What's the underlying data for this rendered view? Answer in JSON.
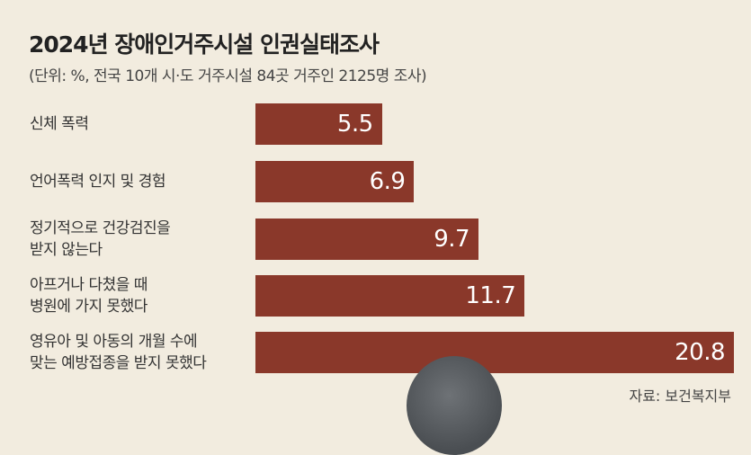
{
  "colors": {
    "background": "#f2ecdf",
    "bar": "#8a382a",
    "value_text": "#ffffff"
  },
  "chart_data": {
    "type": "bar",
    "orientation": "horizontal",
    "title": "2024년 장애인거주시설 인권실태조사",
    "subtitle": "(단위: %, 전국 10개 시·도 거주시설 84곳 거주인 2125명 조사)",
    "categories": [
      "신체 폭력",
      "언어폭력 인지 및 경험",
      "정기적으로 건강검진을\n받지 않는다",
      "아프거나 다쳤을 때\n병원에 가지 못했다",
      "영유아 및 아동의 개월 수에\n맞는 예방접종을 받지 못했다"
    ],
    "values": [
      5.5,
      6.9,
      9.7,
      11.7,
      20.8
    ],
    "value_labels": [
      "5.5",
      "6.9",
      "9.7",
      "11.7",
      "20.8"
    ],
    "xlim": [
      0,
      20.8
    ],
    "grid": false,
    "source": "자료: 보건복지부"
  }
}
